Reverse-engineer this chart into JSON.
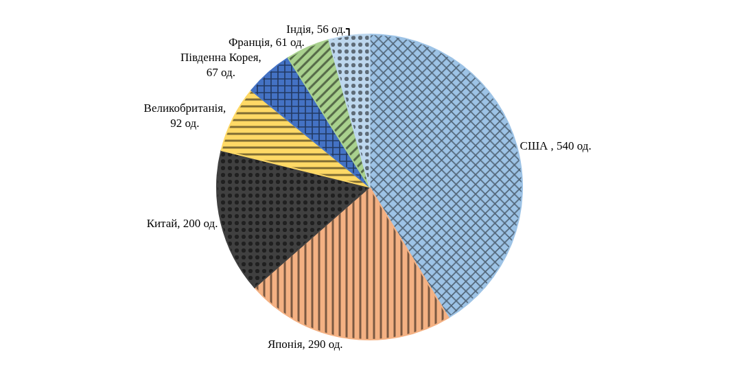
{
  "chart_data": {
    "type": "pie",
    "categories": [
      "США",
      "Японія",
      "Китай",
      "Великобританія",
      "Південна Корея",
      "Франція",
      "Індія"
    ],
    "values": [
      540,
      290,
      200,
      92,
      67,
      61,
      56
    ],
    "value_labels": [
      " , 540 од.",
      ", 290 од.",
      ", 200 од.",
      ", 92 од.",
      ", 67 од.",
      ", 61 од.",
      ", 56 од."
    ],
    "colors": [
      "#9dc3e6",
      "#f4b183",
      "#404040",
      "#ffd966",
      "#4472c4",
      "#a9d18e",
      "#bdd7ee"
    ],
    "legend": false
  }
}
